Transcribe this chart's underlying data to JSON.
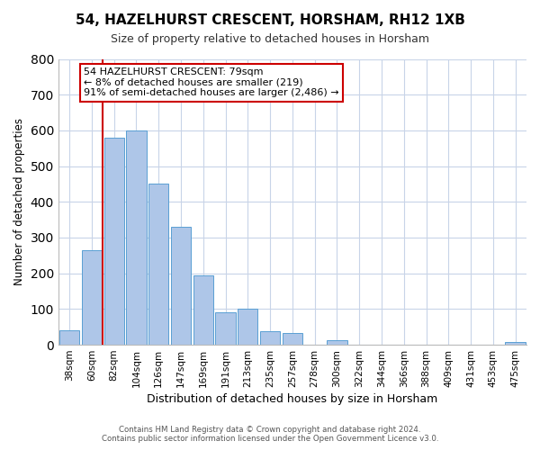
{
  "title": "54, HAZELHURST CRESCENT, HORSHAM, RH12 1XB",
  "subtitle": "Size of property relative to detached houses in Horsham",
  "xlabel": "Distribution of detached houses by size in Horsham",
  "ylabel": "Number of detached properties",
  "bar_labels": [
    "38sqm",
    "60sqm",
    "82sqm",
    "104sqm",
    "126sqm",
    "147sqm",
    "169sqm",
    "191sqm",
    "213sqm",
    "235sqm",
    "257sqm",
    "278sqm",
    "300sqm",
    "322sqm",
    "344sqm",
    "366sqm",
    "388sqm",
    "409sqm",
    "431sqm",
    "453sqm",
    "475sqm"
  ],
  "bar_values": [
    40,
    265,
    580,
    600,
    450,
    330,
    195,
    90,
    100,
    38,
    32,
    0,
    13,
    0,
    0,
    0,
    0,
    0,
    0,
    0,
    8
  ],
  "bar_color": "#aec6e8",
  "bar_edge_color": "#5a9fd4",
  "vline_color": "#cc0000",
  "ylim": [
    0,
    800
  ],
  "yticks": [
    0,
    100,
    200,
    300,
    400,
    500,
    600,
    700,
    800
  ],
  "annotation_title": "54 HAZELHURST CRESCENT: 79sqm",
  "annotation_line1": "← 8% of detached houses are smaller (219)",
  "annotation_line2": "91% of semi-detached houses are larger (2,486) →",
  "annotation_box_color": "#ffffff",
  "annotation_box_edge": "#cc0000",
  "footer1": "Contains HM Land Registry data © Crown copyright and database right 2024.",
  "footer2": "Contains public sector information licensed under the Open Government Licence v3.0.",
  "bg_color": "#ffffff",
  "grid_color": "#c8d4e8"
}
